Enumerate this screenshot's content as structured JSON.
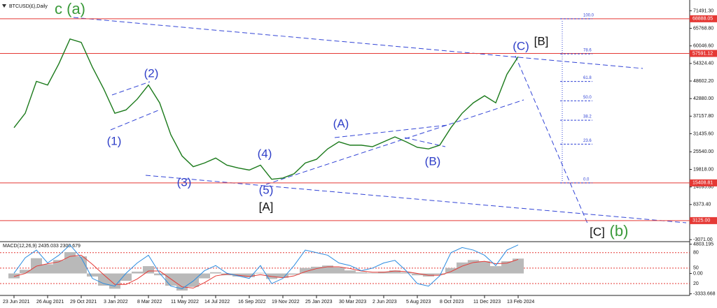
{
  "chart_data": [
    {
      "type": "line",
      "title": "BTCUSD(£),Daily",
      "categories": [
        "23 Jun 2021",
        null,
        null,
        "26 Aug 2021",
        null,
        null,
        "29 Oct 2021",
        null,
        null,
        "3 Jan 2022",
        null,
        null,
        "8 Mar 2022",
        null,
        null,
        "11 May 2022",
        null,
        null,
        "14 Jul 2022",
        null,
        null,
        "16 Sep 2022",
        null,
        null,
        "19 Nov 2022",
        null,
        null,
        "25 Jan 2023",
        null,
        null,
        "30 Mar 2023",
        null,
        null,
        "2 Jun 2023",
        null,
        null,
        "5 Aug 2023",
        null,
        null,
        "8 Oct 2023",
        null,
        null,
        "11 Dec 2023",
        null,
        null,
        "13 Feb 2024"
      ],
      "series": [
        {
          "color": "#1b7a1b",
          "values": [
            33400,
            38100,
            48500,
            47300,
            54200,
            62300,
            61200,
            53100,
            46100,
            38100,
            39200,
            42700,
            47300,
            41500,
            31100,
            24200,
            20700,
            21900,
            23500,
            21200,
            20300,
            19600,
            21200,
            16600,
            17000,
            18400,
            21900,
            23100,
            26500,
            28800,
            27700,
            27700,
            27200,
            28800,
            30400,
            28800,
            27000,
            26500,
            27700,
            33400,
            38100,
            41500,
            43800,
            41500,
            50800,
            56500
          ]
        }
      ],
      "ylim": [
        -3500,
        75000
      ],
      "yticks": [
        {
          "value": 71491.3,
          "label": "71491.30"
        },
        {
          "value": 65768.8,
          "label": "65768.80"
        },
        {
          "value": 60046.6,
          "label": "60046.60"
        },
        {
          "value": 54324.4,
          "label": "54324.40"
        },
        {
          "value": 48602.2,
          "label": "48602.20"
        },
        {
          "value": 42880,
          "label": "42880.00"
        },
        {
          "value": 37157.8,
          "label": "37157.80"
        },
        {
          "value": 31435.6,
          "label": "31435.60"
        },
        {
          "value": 25540,
          "label": "25540.00"
        },
        {
          "value": 19818,
          "label": "19818.00"
        },
        {
          "value": 14095.8,
          "label": "14095.80"
        },
        {
          "value": 8373.4,
          "label": "8373.40"
        },
        {
          "value": -3071,
          "label": "-3071.00"
        }
      ],
      "hlines": [
        {
          "value": 68888.05,
          "label": "68888.05"
        },
        {
          "value": 57591.12,
          "label": "57591.12"
        },
        {
          "value": 15408.81,
          "label": "15408.81"
        },
        {
          "value": 3125,
          "label": "3125.00"
        }
      ],
      "hline_color": "#e53935",
      "fib_levels": [
        {
          "value": 100,
          "label": "100.0"
        },
        {
          "value": 78.6,
          "label": "78.6"
        },
        {
          "value": 61.8,
          "label": "61.8"
        },
        {
          "value": 50,
          "label": "50.0"
        },
        {
          "value": 38.2,
          "label": "38.2"
        },
        {
          "value": 23.6,
          "label": "23.6"
        },
        {
          "value": 0,
          "label": "0.0"
        }
      ],
      "annotations": [
        {
          "text": "c (a)",
          "color": "#3a9a3a"
        },
        {
          "text": "(1)",
          "color": "#2f3fc8"
        },
        {
          "text": "(2)",
          "color": "#2f3fc8"
        },
        {
          "text": "(3)",
          "color": "#2f3fc8"
        },
        {
          "text": "(4)",
          "color": "#2f3fc8"
        },
        {
          "text": "(5)",
          "color": "#2f3fc8"
        },
        {
          "text": "[A]",
          "color": "#111111"
        },
        {
          "text": "(A)",
          "color": "#2f3fc8"
        },
        {
          "text": "(B)",
          "color": "#2f3fc8"
        },
        {
          "text": "(C)",
          "color": "#2f3fc8"
        },
        {
          "text": "[B]",
          "color": "#111111"
        },
        {
          "text": "[C]",
          "color": "#111111"
        },
        {
          "text": "(b)",
          "color": "#3a9a3a"
        }
      ]
    },
    {
      "type": "macd",
      "title": "MACD(12,26,9) 2435.033 2300.679",
      "ylim": [
        -3600,
        5100
      ],
      "yticks": [
        {
          "value": 4803.195,
          "label": "4803.195"
        },
        {
          "value": 0,
          "label": "0.00"
        },
        {
          "value": -3333.668,
          "label": "-3333.668"
        }
      ],
      "y2lim": [
        -3,
        100
      ],
      "y2ticks": [
        80,
        50,
        20
      ],
      "series": [
        {
          "type": "bar",
          "color": "#b9b9b9",
          "values": [
            -800,
            600,
            2500,
            1500,
            2200,
            3500,
            2800,
            -500,
            -2000,
            -2500,
            -1200,
            300,
            1200,
            -300,
            -2000,
            -2800,
            -2200,
            -800,
            200,
            -300,
            -500,
            -600,
            100,
            -900,
            -700,
            -200,
            900,
            1100,
            1300,
            1000,
            500,
            200,
            100,
            300,
            500,
            200,
            -300,
            -500,
            -200,
            900,
            1800,
            2200,
            2000,
            1200,
            2000,
            2435.033
          ]
        },
        {
          "type": "line",
          "color": "#e53935",
          "values": [
            -500,
            0,
            1200,
            1600,
            1900,
            2800,
            3000,
            1500,
            -200,
            -1800,
            -1800,
            -900,
            400,
            400,
            -900,
            -2200,
            -2400,
            -1500,
            -400,
            -100,
            -300,
            -500,
            -200,
            -500,
            -700,
            -400,
            300,
            800,
            1100,
            1100,
            800,
            400,
            200,
            200,
            400,
            300,
            0,
            -300,
            -300,
            300,
            1200,
            1800,
            2000,
            1600,
            1700,
            2300.679
          ]
        },
        {
          "type": "line",
          "color": "#2b8ce0",
          "axis": "y2",
          "values": [
            40,
            70,
            85,
            60,
            75,
            95,
            70,
            30,
            20,
            15,
            40,
            60,
            75,
            40,
            15,
            10,
            25,
            45,
            55,
            40,
            35,
            30,
            55,
            20,
            30,
            55,
            85,
            80,
            75,
            60,
            55,
            45,
            50,
            60,
            65,
            45,
            20,
            15,
            35,
            80,
            90,
            85,
            75,
            55,
            85,
            95
          ]
        }
      ]
    }
  ]
}
